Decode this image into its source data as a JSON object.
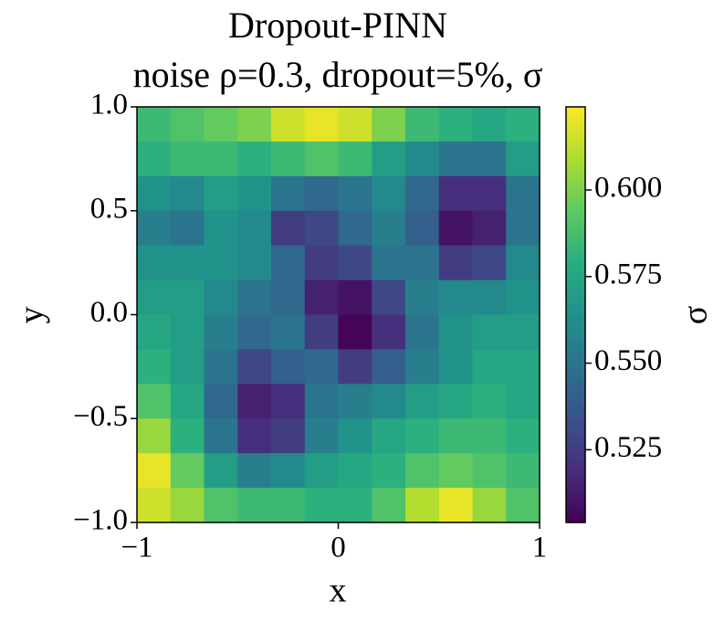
{
  "chart_data": {
    "type": "heatmap",
    "title": "Dropout-PINN",
    "subtitle": "noise ρ=0.3, dropout=5%, σ",
    "x_label": "x",
    "y_label": "y",
    "colorbar_label": "σ",
    "xlim": [
      -1,
      1
    ],
    "ylim": [
      -1,
      1
    ],
    "xticks": [
      {
        "value": -1,
        "label": "−1"
      },
      0,
      1
    ],
    "yticks": [
      {
        "value": -1,
        "label": "−1.0"
      },
      {
        "value": -0.5,
        "label": "−0.5"
      },
      {
        "value": 0,
        "label": "0.0"
      },
      {
        "value": 0.5,
        "label": "0.5"
      },
      {
        "value": 1,
        "label": "1.0"
      }
    ],
    "clim": [
      0.504,
      0.624
    ],
    "cticks": [
      {
        "value": 0.525,
        "label": "0.525"
      },
      {
        "value": 0.55,
        "label": "0.550"
      },
      {
        "value": 0.575,
        "label": "0.575"
      },
      {
        "value": 0.6,
        "label": "0.600"
      }
    ],
    "colormap": [
      "#440154",
      "#472d7b",
      "#3b528b",
      "#2c728e",
      "#21918c",
      "#28ae80",
      "#5ec962",
      "#addc30",
      "#fde725"
    ],
    "values": [
      [
        0.585,
        0.59,
        0.595,
        0.6,
        0.615,
        0.62,
        0.615,
        0.6,
        0.585,
        0.58,
        0.575,
        0.58
      ],
      [
        0.58,
        0.585,
        0.585,
        0.58,
        0.585,
        0.59,
        0.585,
        0.57,
        0.56,
        0.55,
        0.55,
        0.57
      ],
      [
        0.565,
        0.56,
        0.57,
        0.565,
        0.55,
        0.545,
        0.55,
        0.56,
        0.545,
        0.52,
        0.52,
        0.55
      ],
      [
        0.555,
        0.55,
        0.565,
        0.56,
        0.525,
        0.53,
        0.545,
        0.555,
        0.54,
        0.51,
        0.515,
        0.55
      ],
      [
        0.565,
        0.565,
        0.565,
        0.56,
        0.545,
        0.525,
        0.53,
        0.55,
        0.55,
        0.525,
        0.53,
        0.56
      ],
      [
        0.57,
        0.57,
        0.56,
        0.55,
        0.545,
        0.515,
        0.51,
        0.53,
        0.555,
        0.56,
        0.56,
        0.565
      ],
      [
        0.575,
        0.57,
        0.555,
        0.545,
        0.55,
        0.525,
        0.505,
        0.52,
        0.55,
        0.565,
        0.57,
        0.57
      ],
      [
        0.58,
        0.57,
        0.55,
        0.53,
        0.54,
        0.545,
        0.525,
        0.54,
        0.555,
        0.565,
        0.575,
        0.575
      ],
      [
        0.59,
        0.575,
        0.545,
        0.515,
        0.52,
        0.55,
        0.555,
        0.56,
        0.57,
        0.575,
        0.58,
        0.575
      ],
      [
        0.605,
        0.58,
        0.55,
        0.52,
        0.525,
        0.555,
        0.565,
        0.575,
        0.58,
        0.585,
        0.585,
        0.58
      ],
      [
        0.62,
        0.595,
        0.57,
        0.555,
        0.56,
        0.57,
        0.575,
        0.58,
        0.59,
        0.595,
        0.59,
        0.585
      ],
      [
        0.615,
        0.605,
        0.59,
        0.585,
        0.585,
        0.58,
        0.58,
        0.59,
        0.61,
        0.62,
        0.605,
        0.59
      ]
    ]
  }
}
